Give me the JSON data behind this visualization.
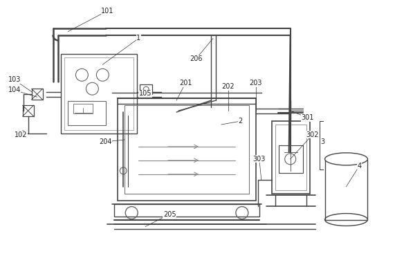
{
  "bg_color": "#f0f0f0",
  "line_color": "#666666",
  "dark_color": "#444444",
  "fig_width": 5.71,
  "fig_height": 3.7,
  "dpi": 100
}
